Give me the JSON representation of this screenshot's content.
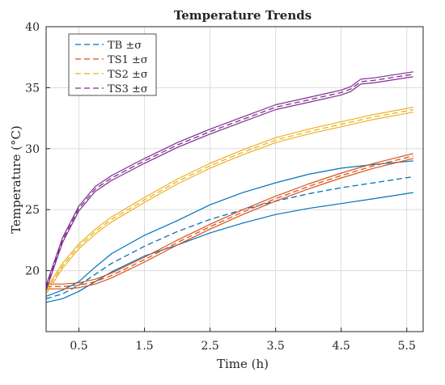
{
  "chart_data": {
    "type": "line",
    "title": "Temperature Trends",
    "xlabel": "Time (h)",
    "ylabel": "Temperature (°C)",
    "xlim": [
      0,
      5.75
    ],
    "ylim": [
      15,
      40
    ],
    "xticks": [
      0.5,
      1.5,
      2.5,
      3.5,
      4.5,
      5.5
    ],
    "xtick_labels": [
      "0.5",
      "1.5",
      "2.5",
      "3.5",
      "4.5",
      "5.5"
    ],
    "yticks": [
      20,
      25,
      30,
      35,
      40
    ],
    "ytick_labels": [
      "20",
      "25",
      "30",
      "35",
      "40"
    ],
    "grid": true,
    "legend_position": "top-left",
    "series": [
      {
        "name": "TB ±σ",
        "color": "#0072BD",
        "x": [
          0,
          0.25,
          0.5,
          0.75,
          1.0,
          1.5,
          2.0,
          2.5,
          3.0,
          3.5,
          4.0,
          4.5,
          5.0,
          5.6
        ],
        "mean": [
          17.7,
          18.1,
          18.8,
          19.7,
          20.6,
          22.0,
          23.2,
          24.2,
          25.0,
          25.7,
          26.3,
          26.8,
          27.2,
          27.7
        ],
        "upper": [
          17.9,
          18.4,
          19.1,
          20.3,
          21.4,
          22.9,
          24.1,
          25.4,
          26.4,
          27.2,
          27.9,
          28.4,
          28.7,
          29.0
        ],
        "lower": [
          17.4,
          17.7,
          18.3,
          19.1,
          19.9,
          21.2,
          22.1,
          23.1,
          23.9,
          24.6,
          25.1,
          25.5,
          25.9,
          26.4
        ]
      },
      {
        "name": "TS1 ±σ",
        "color": "#D95319",
        "x": [
          0,
          0.25,
          0.5,
          0.75,
          1.0,
          1.5,
          2.0,
          2.5,
          3.0,
          3.5,
          4.0,
          4.5,
          5.0,
          5.6
        ],
        "mean": [
          18.7,
          18.7,
          18.8,
          19.1,
          19.6,
          20.9,
          22.3,
          23.6,
          24.8,
          25.9,
          26.9,
          27.8,
          28.6,
          29.4
        ],
        "upper": [
          18.9,
          18.9,
          19.0,
          19.3,
          19.8,
          21.1,
          22.5,
          23.8,
          25.0,
          26.1,
          27.1,
          28.0,
          28.8,
          29.6
        ],
        "lower": [
          18.5,
          18.5,
          18.6,
          18.9,
          19.4,
          20.7,
          22.1,
          23.4,
          24.6,
          25.7,
          26.7,
          27.6,
          28.4,
          29.2
        ]
      },
      {
        "name": "TS2 ±σ",
        "color": "#EDB120",
        "x": [
          0,
          0.25,
          0.5,
          0.75,
          1.0,
          1.5,
          2.0,
          2.5,
          3.0,
          3.5,
          4.0,
          4.5,
          5.0,
          5.6
        ],
        "mean": [
          18.3,
          20.4,
          22.0,
          23.2,
          24.2,
          25.8,
          27.3,
          28.6,
          29.7,
          30.7,
          31.4,
          32.0,
          32.6,
          33.2
        ],
        "upper": [
          18.5,
          20.6,
          22.2,
          23.4,
          24.4,
          26.0,
          27.5,
          28.8,
          29.9,
          30.9,
          31.6,
          32.2,
          32.8,
          33.4
        ],
        "lower": [
          18.1,
          20.2,
          21.8,
          23.0,
          24.0,
          25.6,
          27.1,
          28.4,
          29.5,
          30.5,
          31.2,
          31.8,
          32.4,
          33.0
        ]
      },
      {
        "name": "TS3 ±σ",
        "color": "#7E2F8E",
        "x": [
          0,
          0.25,
          0.5,
          0.75,
          1.0,
          1.25,
          1.5,
          2.0,
          2.5,
          3.0,
          3.5,
          4.0,
          4.5,
          4.65,
          4.8,
          5.0,
          5.6
        ],
        "mean": [
          18.6,
          22.5,
          25.1,
          26.7,
          27.6,
          28.3,
          29.0,
          30.3,
          31.4,
          32.4,
          33.4,
          34.0,
          34.6,
          34.9,
          35.5,
          35.6,
          36.1
        ],
        "upper": [
          18.8,
          22.7,
          25.3,
          26.9,
          27.8,
          28.5,
          29.2,
          30.5,
          31.6,
          32.6,
          33.6,
          34.2,
          34.8,
          35.1,
          35.7,
          35.8,
          36.3
        ],
        "lower": [
          18.4,
          22.3,
          24.9,
          26.5,
          27.4,
          28.1,
          28.8,
          30.1,
          31.2,
          32.2,
          33.2,
          33.8,
          34.4,
          34.7,
          35.3,
          35.4,
          35.9
        ]
      }
    ]
  }
}
